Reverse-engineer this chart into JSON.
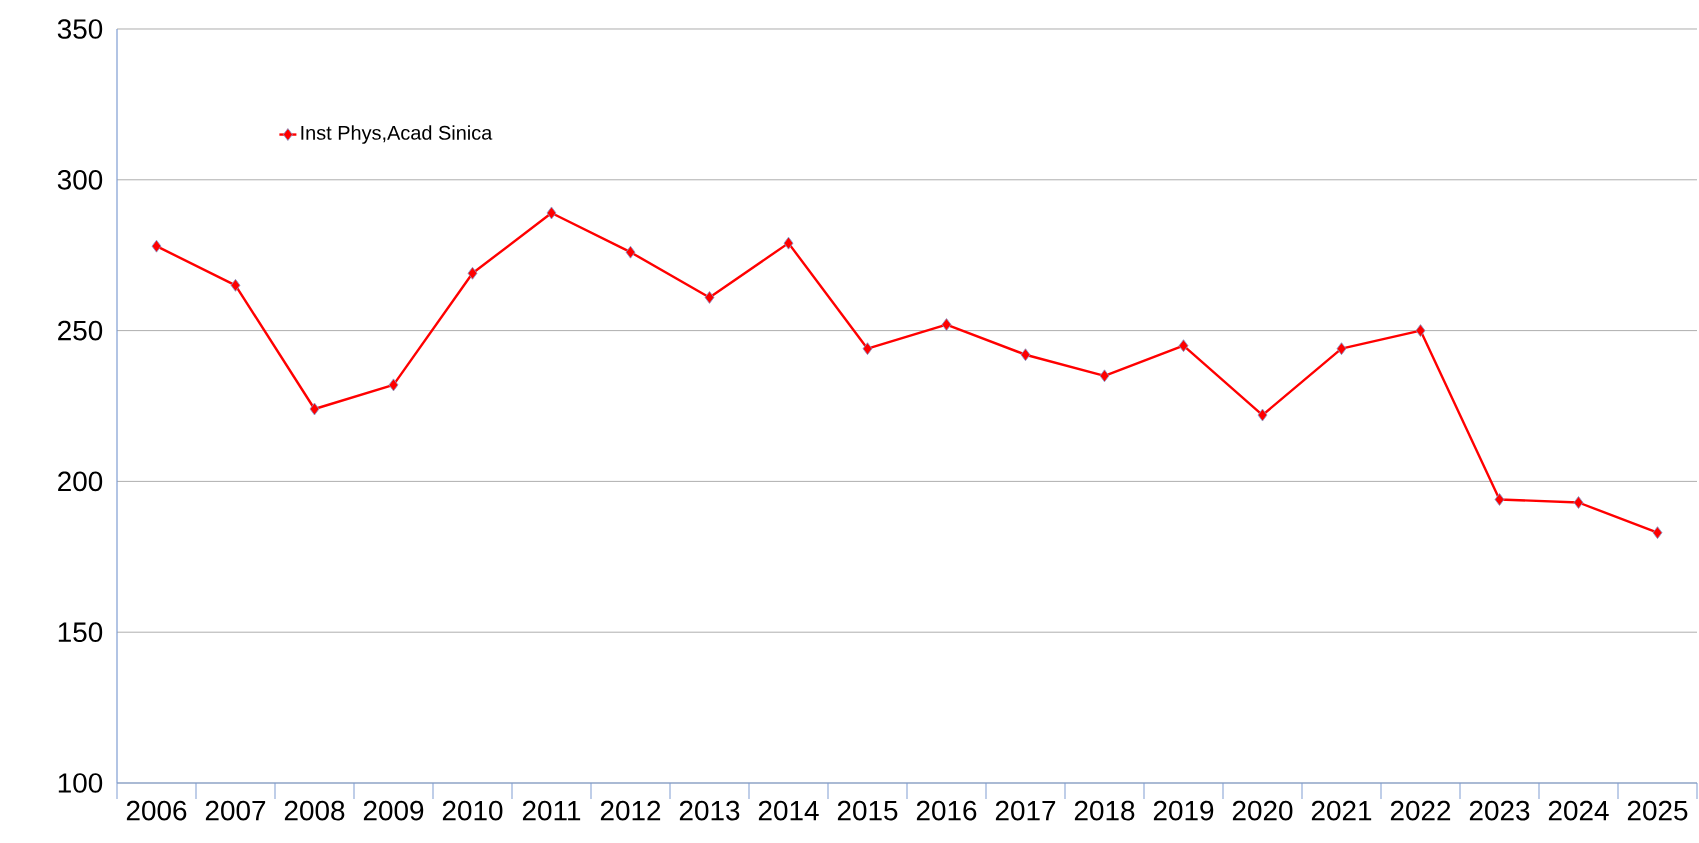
{
  "chart_data": {
    "type": "line",
    "categories": [
      "2006",
      "2007",
      "2008",
      "2009",
      "2010",
      "2011",
      "2012",
      "2013",
      "2014",
      "2015",
      "2016",
      "2017",
      "2018",
      "2019",
      "2020",
      "2021",
      "2022",
      "2023",
      "2024",
      "2025"
    ],
    "series": [
      {
        "name": "Inst Phys,Acad Sinica",
        "color": "#ff0000",
        "values": [
          278,
          265,
          224,
          232,
          269,
          289,
          276,
          261,
          279,
          244,
          252,
          242,
          235,
          245,
          222,
          244,
          250,
          194,
          193,
          183
        ]
      }
    ],
    "ylim": [
      100,
      350
    ],
    "yticks": [
      100,
      150,
      200,
      250,
      300,
      350
    ],
    "grid": "y",
    "legend": "top left",
    "marker": "diamond",
    "line_style": "solid"
  }
}
